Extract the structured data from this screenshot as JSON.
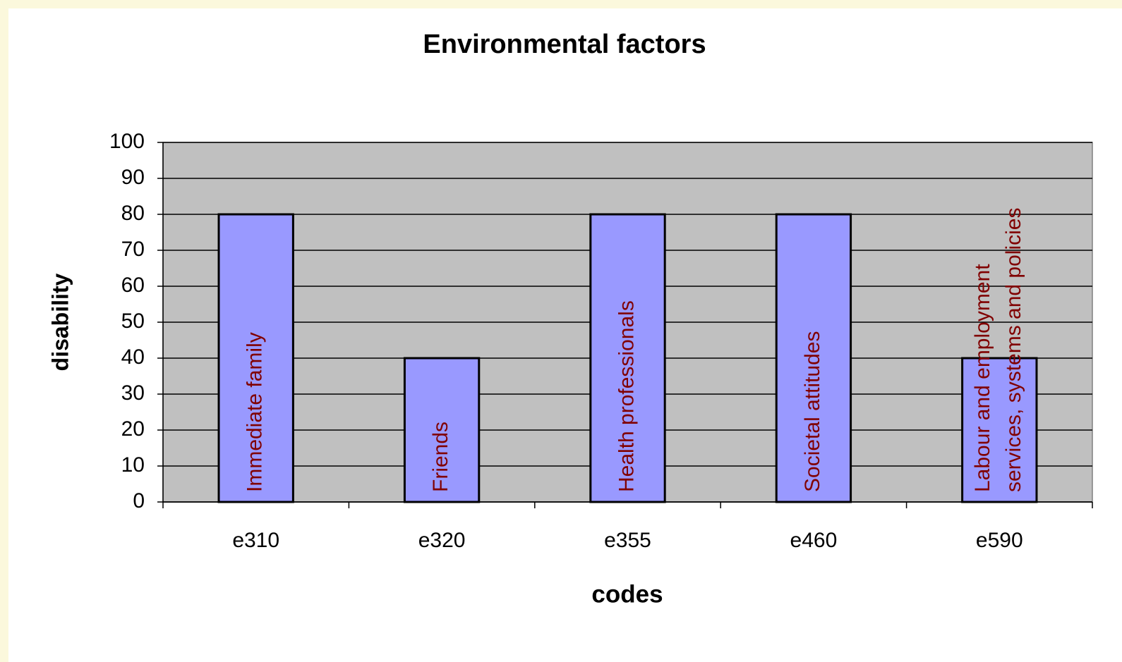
{
  "chart_data": {
    "type": "bar",
    "title": "Environmental factors",
    "x_label": "codes",
    "y_label": "disability",
    "categories": [
      "e310",
      "e320",
      "e355",
      "e460",
      "e590"
    ],
    "values": [
      80,
      40,
      80,
      80,
      40
    ],
    "bar_labels": [
      [
        "Immediate family"
      ],
      [
        "Friends"
      ],
      [
        "Health professionals"
      ],
      [
        "Societal attitudes"
      ],
      [
        "Labour and employment",
        "services, systems and policies"
      ]
    ],
    "color": "#9999ff",
    "label_color": "#800000",
    "plot_background": "#c0c0c0",
    "ylim": [
      0,
      100
    ],
    "yticks": [
      0,
      10,
      20,
      30,
      40,
      50,
      60,
      70,
      80,
      90,
      100
    ],
    "grid": true
  }
}
